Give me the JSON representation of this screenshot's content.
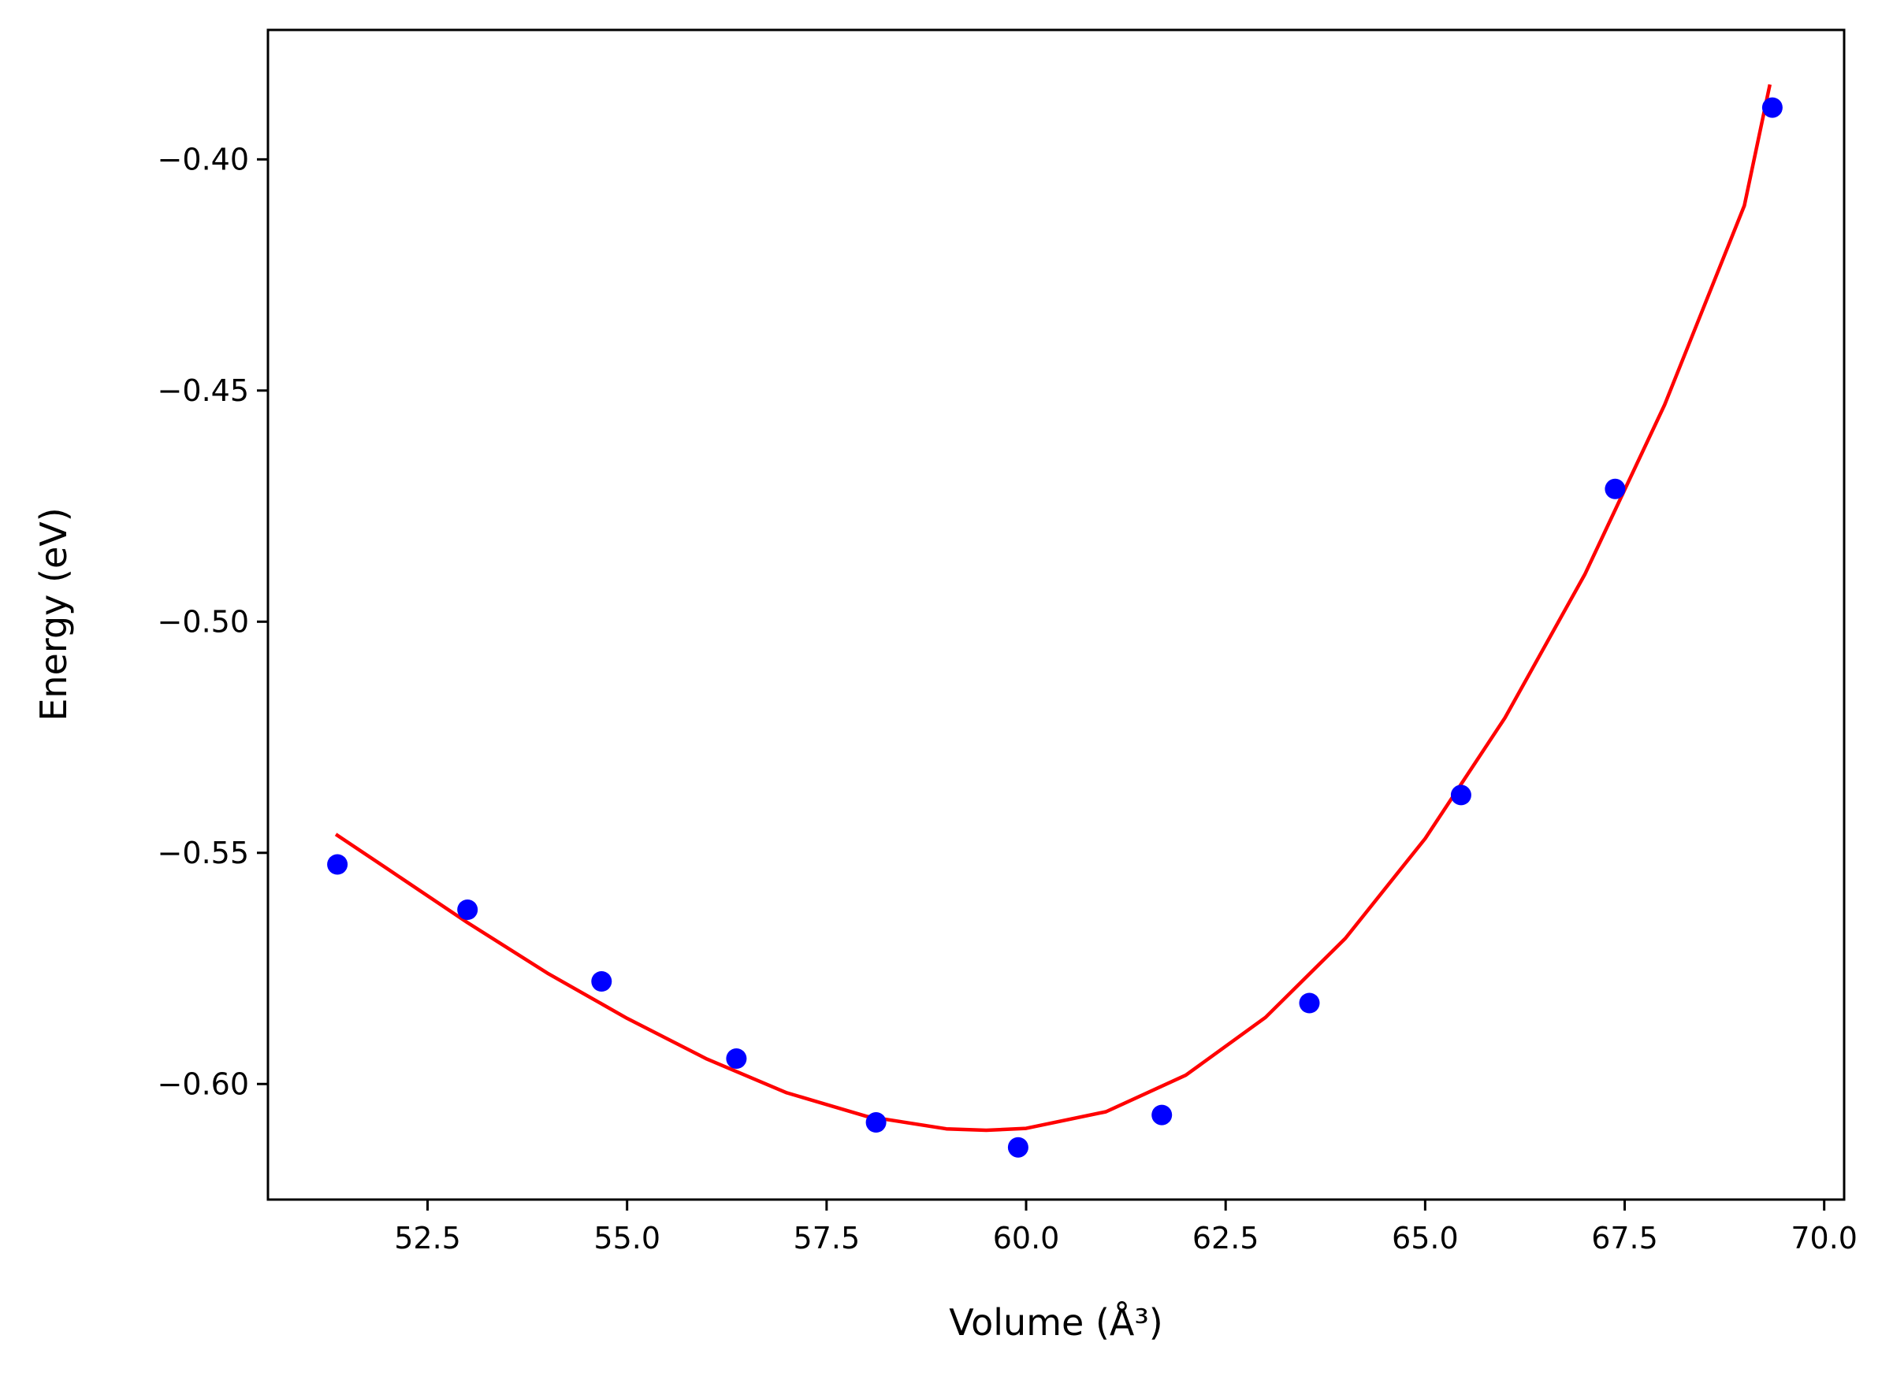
{
  "chart_data": {
    "type": "scatter",
    "xlabel": "Volume (Å³)",
    "ylabel": "Energy (eV)",
    "xlim": [
      50.5,
      70.25
    ],
    "ylim": [
      -0.625,
      -0.372
    ],
    "x_ticks": [
      52.5,
      55.0,
      57.5,
      60.0,
      62.5,
      65.0,
      67.5,
      70.0
    ],
    "x_tick_labels": [
      "52.5",
      "55.0",
      "57.5",
      "60.0",
      "62.5",
      "65.0",
      "67.5",
      "70.0"
    ],
    "y_ticks": [
      -0.4,
      -0.45,
      -0.5,
      -0.55,
      -0.6
    ],
    "y_tick_labels": [
      "−0.40",
      "−0.45",
      "−0.50",
      "−0.55",
      "−0.60"
    ],
    "grid": false,
    "series": [
      {
        "kind": "scatter",
        "color": "#0000ff",
        "points": [
          {
            "x": 51.37,
            "y": -0.5525
          },
          {
            "x": 53.0,
            "y": -0.5623
          },
          {
            "x": 54.68,
            "y": -0.5778
          },
          {
            "x": 56.37,
            "y": -0.5945
          },
          {
            "x": 58.12,
            "y": -0.6083
          },
          {
            "x": 59.9,
            "y": -0.6137
          },
          {
            "x": 61.7,
            "y": -0.6067
          },
          {
            "x": 63.55,
            "y": -0.5825
          },
          {
            "x": 65.45,
            "y": -0.5375
          },
          {
            "x": 67.38,
            "y": -0.4713
          },
          {
            "x": 69.35,
            "y": -0.3888
          }
        ]
      },
      {
        "kind": "line",
        "color": "#ff0000",
        "points": [
          {
            "x": 51.35,
            "y": -0.546
          },
          {
            "x": 52.0,
            "y": -0.5535
          },
          {
            "x": 53.0,
            "y": -0.5651
          },
          {
            "x": 54.0,
            "y": -0.576
          },
          {
            "x": 55.0,
            "y": -0.5858
          },
          {
            "x": 56.0,
            "y": -0.5946
          },
          {
            "x": 57.0,
            "y": -0.6019
          },
          {
            "x": 58.0,
            "y": -0.607
          },
          {
            "x": 59.0,
            "y": -0.6097
          },
          {
            "x": 59.5,
            "y": -0.61
          },
          {
            "x": 60.0,
            "y": -0.6096
          },
          {
            "x": 61.0,
            "y": -0.606
          },
          {
            "x": 62.0,
            "y": -0.5981
          },
          {
            "x": 63.0,
            "y": -0.5856
          },
          {
            "x": 64.0,
            "y": -0.5685
          },
          {
            "x": 65.0,
            "y": -0.5469
          },
          {
            "x": 66.0,
            "y": -0.5208
          },
          {
            "x": 67.0,
            "y": -0.4898
          },
          {
            "x": 68.0,
            "y": -0.4531
          },
          {
            "x": 69.0,
            "y": -0.41
          },
          {
            "x": 69.32,
            "y": -0.3838
          }
        ]
      }
    ]
  }
}
